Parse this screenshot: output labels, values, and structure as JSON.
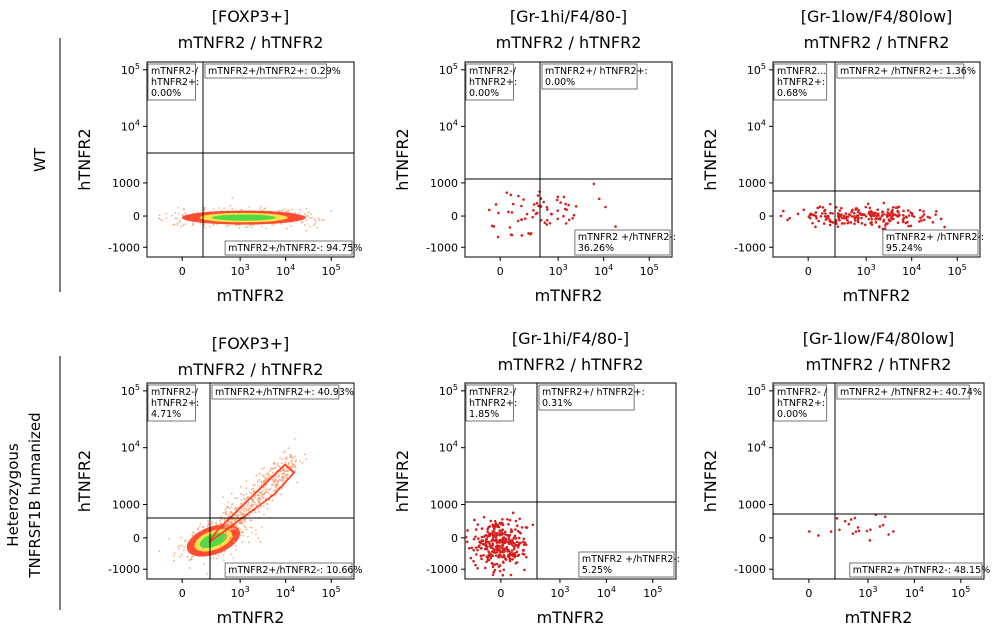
{
  "row_labels": [
    "WT",
    "Heterozygous",
    "TNFRSF1B humanized"
  ],
  "chart_data": [
    {
      "type": "scatter",
      "row": "WT",
      "title": [
        "[FOXP3+]",
        "mTNFR2 / hTNFR2"
      ],
      "xlabel": "mTNFR2",
      "ylabel": "hTNFR2",
      "x_ticks": [
        "0",
        "10^3",
        "10^4",
        "10^5"
      ],
      "y_ticks": [
        "-1000",
        "0",
        "1000",
        "10^4",
        "10^5"
      ],
      "gate": {
        "x": 200,
        "y": 300
      },
      "quadrants": [
        {
          "name": "Q1",
          "label": [
            "mTNFR2-/",
            "hTNFR2+:",
            "0.00%"
          ],
          "percent": 0.0
        },
        {
          "name": "Q2",
          "label": [
            "mTNFR2+/hTNFR2+: 0.29%"
          ],
          "percent": 0.29
        },
        {
          "name": "Q3",
          "label": [
            "mTNFR2+/hTNFR2-: 94.75%"
          ],
          "percent": 94.75
        }
      ],
      "population": "dense-horizontal"
    },
    {
      "type": "scatter",
      "row": "WT",
      "title": [
        "[Gr-1hi/F4/80-]",
        "mTNFR2 / hTNFR2"
      ],
      "xlabel": "mTNFR2",
      "ylabel": "hTNFR2",
      "x_ticks": [
        "0",
        "10^3",
        "10^4",
        "10^5"
      ],
      "y_ticks": [
        "-1000",
        "0",
        "1000",
        "10^4",
        "10^5"
      ],
      "gate": {
        "x": 300,
        "y": 1000
      },
      "quadrants": [
        {
          "name": "Q1",
          "label": [
            "mTNFR2-/",
            "hTNFR2+:",
            "0.00%"
          ],
          "percent": 0.0
        },
        {
          "name": "Q2",
          "label": [
            "mTNFR2+/ hTNFR2+:",
            "0.00%"
          ],
          "percent": 0.0
        },
        {
          "name": "Q3",
          "label": [
            "mTNFR2 +/hTNFR2-:",
            "36.26%"
          ],
          "percent": 36.26
        }
      ],
      "population": "sparse-dots"
    },
    {
      "type": "scatter",
      "row": "WT",
      "title": [
        "[Gr-1low/F4/80low]",
        "mTNFR2 / hTNFR2"
      ],
      "xlabel": "mTNFR2",
      "ylabel": "hTNFR2",
      "x_ticks": [
        "0",
        "10^3",
        "10^4",
        "10^5"
      ],
      "y_ticks": [
        "-1000",
        "0",
        "1000",
        "10^4",
        "10^5"
      ],
      "gate": {
        "x": 150,
        "y": 600
      },
      "quadrants": [
        {
          "name": "Q1",
          "label": [
            "mTNFR2...",
            "hTNFR2+:",
            "0.68%"
          ],
          "percent": 0.68
        },
        {
          "name": "Q2",
          "label": [
            "mTNFR2+ /hTNFR2+: 1.36%"
          ],
          "percent": 1.36
        },
        {
          "name": "Q3",
          "label": [
            "mTNFR2+ /hTNFR2-:",
            "95.24%"
          ],
          "percent": 95.24
        }
      ],
      "population": "dots-band"
    },
    {
      "type": "scatter",
      "row": "Heterozygous TNFRSF1B humanized",
      "title": [
        "[FOXP3+]",
        "mTNFR2 / hTNFR2"
      ],
      "xlabel": "mTNFR2",
      "ylabel": "hTNFR2",
      "x_ticks": [
        "0",
        "10^3",
        "10^4",
        "10^5"
      ],
      "y_ticks": [
        "-1000",
        "0",
        "1000",
        "10^4",
        "10^5"
      ],
      "gate": {
        "x": 300,
        "y": 500
      },
      "quadrants": [
        {
          "name": "Q1",
          "label": [
            "mTNFR2-/",
            "hTNFR2+:",
            "4.71%"
          ],
          "percent": 4.71
        },
        {
          "name": "Q2",
          "label": [
            "mTNFR2+/hTNFR2+: 40.93%"
          ],
          "percent": 40.93
        },
        {
          "name": "Q3",
          "label": [
            "mTNFR2+/hTNFR2-: 10.66%"
          ],
          "percent": 10.66
        }
      ],
      "population": "dense-diagonal"
    },
    {
      "type": "scatter",
      "row": "Heterozygous TNFRSF1B humanized",
      "title": [
        "[Gr-1hi/F4/80-]",
        "mTNFR2 / hTNFR2"
      ],
      "xlabel": "mTNFR2",
      "ylabel": "hTNFR2",
      "x_ticks": [
        "0",
        "10^3",
        "10^4",
        "10^5"
      ],
      "y_ticks": [
        "-1000",
        "0",
        "1000",
        "10^4",
        "10^5"
      ],
      "gate": {
        "x": 250,
        "y": 800
      },
      "quadrants": [
        {
          "name": "Q1",
          "label": [
            "mTNFR2-/",
            "hTNFR2+:",
            "1.85%"
          ],
          "percent": 1.85
        },
        {
          "name": "Q2",
          "label": [
            "mTNFR2+/ hTNFR2+:",
            "0.31%"
          ],
          "percent": 0.31
        },
        {
          "name": "Q3",
          "label": [
            "mTNFR2 +/hTNFR2-:",
            "5.25%"
          ],
          "percent": 5.25
        }
      ],
      "population": "dense-cloud"
    },
    {
      "type": "scatter",
      "row": "Heterozygous TNFRSF1B humanized",
      "title": [
        "[Gr-1low/F4/80low]",
        "mTNFR2 / hTNFR2"
      ],
      "xlabel": "mTNFR2",
      "ylabel": "hTNFR2",
      "x_ticks": [
        "0",
        "10^3",
        "10^4",
        "10^5"
      ],
      "y_ticks": [
        "-1000",
        "0",
        "1000",
        "10^4",
        "10^5"
      ],
      "gate": {
        "x": 80,
        "y": 400
      },
      "quadrants": [
        {
          "name": "Q1",
          "label": [
            "mTNFR2- /",
            "hTNFR2+:",
            "0.00%"
          ],
          "percent": 0.0
        },
        {
          "name": "Q2",
          "label": [
            "mTNFR2+ /hTNFR2+: 40.74%"
          ],
          "percent": 40.74
        },
        {
          "name": "Q3",
          "label": [
            "mTNFR2+ /hTNFR2-: 48.15%"
          ],
          "percent": 48.15
        }
      ],
      "population": "few-dots"
    }
  ],
  "colors": {
    "axis": "#000000",
    "dot": "#d62020",
    "density_outer": "#f4a070",
    "density_mid": "#ff3b1f",
    "density_core_yellow": "#ffe94a",
    "density_core_green": "#49d848",
    "label_box_bg": "#ffffff"
  }
}
